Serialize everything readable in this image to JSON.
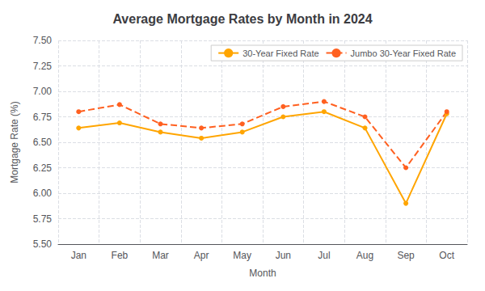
{
  "chart_data": {
    "type": "line",
    "title": "Average Mortgage Rates by Month in 2024",
    "xlabel": "Month",
    "ylabel": "Mortgage Rate (%)",
    "categories": [
      "Jan",
      "Feb",
      "Mar",
      "Apr",
      "May",
      "Jun",
      "Jul",
      "Aug",
      "Sep",
      "Oct"
    ],
    "series": [
      {
        "name": "30-Year Fixed Rate",
        "color": "#FFA500",
        "line_style": "solid",
        "marker": "circle",
        "values": [
          6.64,
          6.69,
          6.6,
          6.54,
          6.6,
          6.75,
          6.8,
          6.64,
          5.9,
          6.78
        ]
      },
      {
        "name": "Jumbo 30-Year Fixed Rate",
        "color": "#FF6020",
        "line_style": "dashed",
        "marker": "circle",
        "values": [
          6.8,
          6.87,
          6.68,
          6.64,
          6.68,
          6.85,
          6.9,
          6.75,
          6.25,
          6.8
        ]
      }
    ],
    "ylim": [
      5.5,
      7.5
    ],
    "yticks": [
      {
        "value": 5.5,
        "label": "5.50"
      },
      5.75,
      {
        "value": 6,
        "label": "6.00"
      },
      6.25,
      {
        "value": 6.5,
        "label": "6.50"
      },
      6.75,
      {
        "value": 7,
        "label": "7.00"
      },
      7.25,
      {
        "value": 7.5,
        "label": "7.50"
      }
    ],
    "grid": true,
    "legend": "upper right"
  }
}
